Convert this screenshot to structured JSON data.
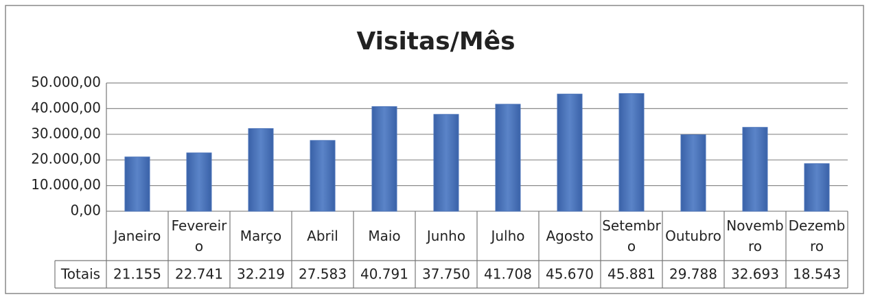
{
  "chart_data": {
    "type": "bar",
    "title": "Visitas/Mês",
    "categories": [
      "Janeiro",
      "Fevereiro",
      "Março",
      "Abril",
      "Maio",
      "Junho",
      "Julho",
      "Agosto",
      "Setembro",
      "Outubro",
      "Novembro",
      "Dezembro"
    ],
    "series": [
      {
        "name": "Totais",
        "color": "#4a72b8",
        "values": [
          21155,
          22741,
          32219,
          27583,
          40791,
          37750,
          41708,
          45670,
          45881,
          29788,
          32693,
          18543
        ],
        "value_labels": [
          "21.155",
          "22.741",
          "32.219",
          "27.583",
          "40.791",
          "37.750",
          "41.708",
          "45.670",
          "45.881",
          "29.788",
          "32.693",
          "18.543"
        ]
      }
    ],
    "ylim": [
      0,
      50000
    ],
    "yticks": [
      {
        "value": 0,
        "label": "0,00"
      },
      {
        "value": 10000,
        "label": "10.000,00"
      },
      {
        "value": 20000,
        "label": "20.000,00"
      },
      {
        "value": 30000,
        "label": "30.000,00"
      },
      {
        "value": 40000,
        "label": "40.000,00"
      },
      {
        "value": 50000,
        "label": "50.000,00"
      }
    ],
    "grid": true
  }
}
